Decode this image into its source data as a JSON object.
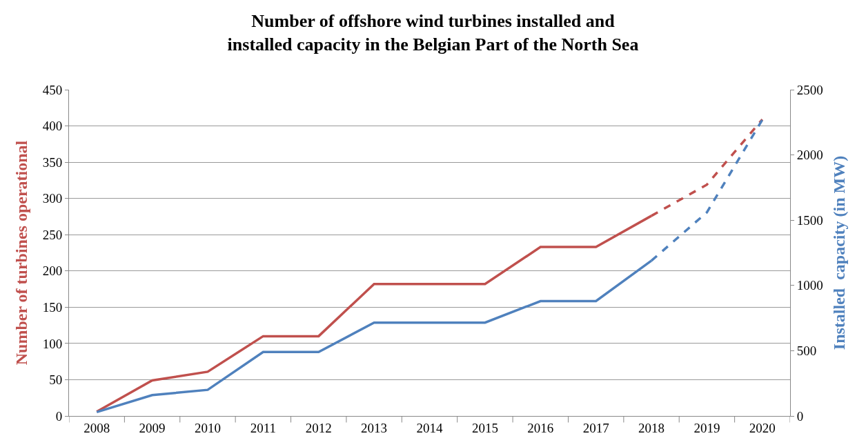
{
  "chart_data": {
    "type": "line",
    "title": "Number of offshore wind turbines installed and\ninstalled capacity in the Belgian Part of the North Sea",
    "ylabel": "Number of turbines operational",
    "y2label": "Installed  capacity (in MW)",
    "categories": [
      "2008",
      "2009",
      "2010",
      "2011",
      "2012",
      "2013",
      "2014",
      "2015",
      "2016",
      "2017",
      "2018",
      "2019",
      "2020"
    ],
    "series": [
      {
        "color": "#c0504d",
        "line_style": "solid",
        "values": [
          6,
          49,
          61,
          110,
          110,
          182,
          182,
          182,
          233,
          233,
          276,
          null,
          null
        ]
      },
      {
        "color": "#c0504d",
        "line_style": "dashed",
        "values": [
          null,
          null,
          null,
          null,
          null,
          null,
          null,
          null,
          null,
          null,
          276,
          319,
          409
        ]
      },
      {
        "color": "#4f81bd",
        "line_style": "solid",
        "axis": "y2",
        "values": [
          30,
          160,
          200,
          490,
          490,
          715,
          715,
          715,
          880,
          880,
          1190,
          null,
          null
        ]
      },
      {
        "color": "#4f81bd",
        "line_style": "dashed",
        "axis": "y2",
        "values": [
          null,
          null,
          null,
          null,
          null,
          null,
          null,
          null,
          null,
          null,
          1190,
          1560,
          2270
        ]
      }
    ],
    "ylim": [
      0,
      450
    ],
    "yticks": [
      0,
      50,
      100,
      150,
      200,
      250,
      300,
      350,
      400,
      450
    ],
    "y2lim": [
      0,
      2500
    ],
    "y2ticks": [
      0,
      500,
      1000,
      1500,
      2000,
      2500
    ],
    "grid": "y"
  }
}
